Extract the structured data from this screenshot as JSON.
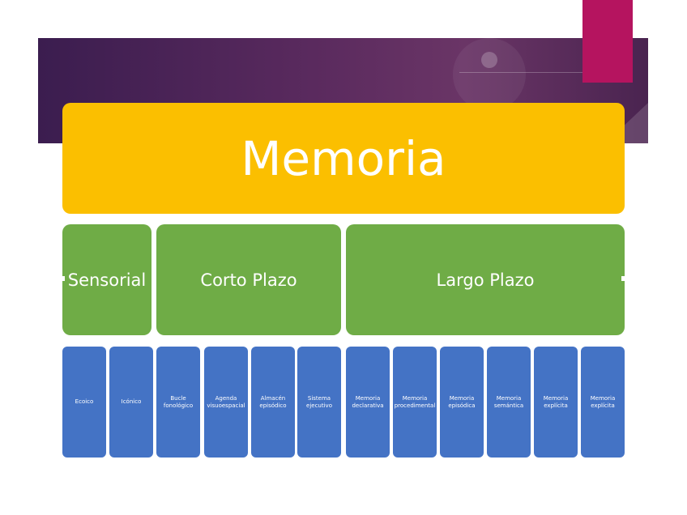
{
  "root": {
    "label": "Memoria"
  },
  "categories": [
    {
      "label": "Sensorial"
    },
    {
      "label": "Corto Plazo"
    },
    {
      "label": "Largo Plazo"
    }
  ],
  "subtypes": [
    {
      "label": "Ecoico"
    },
    {
      "label": "Icónico"
    },
    {
      "label": "Bucle fonológico"
    },
    {
      "label": "Agenda visuoespacial"
    },
    {
      "label": "Almacén episódico"
    },
    {
      "label": "Sistema ejecutivo"
    },
    {
      "label": "Memoria declarativa"
    },
    {
      "label": "Memoria procedimental"
    },
    {
      "label": "Memoria episódica"
    },
    {
      "label": "Memoria semántica"
    },
    {
      "label": "Memoria explícita"
    },
    {
      "label": "Memoria explícita"
    }
  ],
  "colors": {
    "root": "#fbbf00",
    "category": "#6fac46",
    "subtype": "#4473c5",
    "banner": "#4a2450",
    "accent": "#b5145f"
  }
}
